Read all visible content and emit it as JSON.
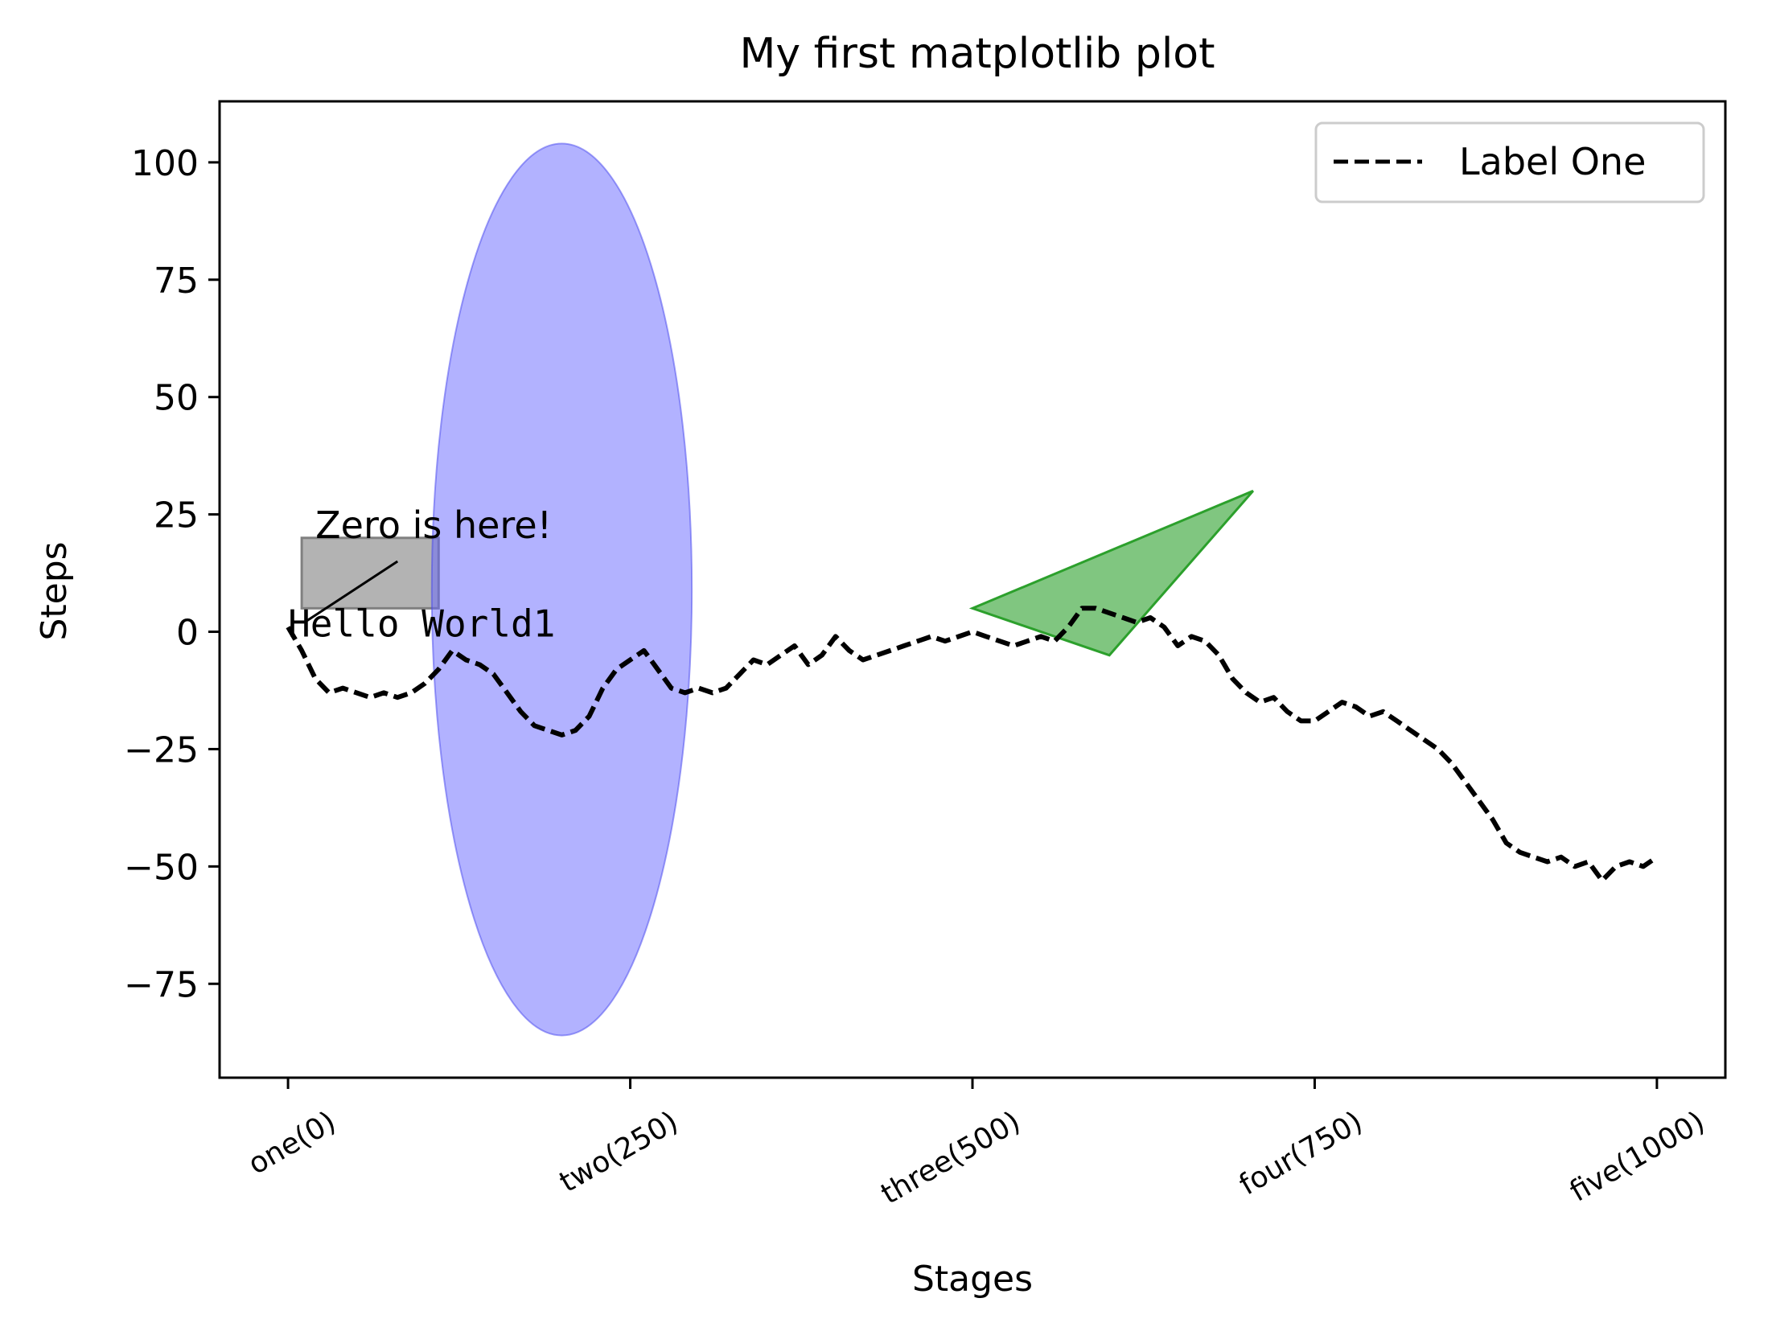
{
  "chart_data": {
    "type": "line",
    "title": "My first matplotlib plot",
    "xlabel": "Stages",
    "ylabel": "Steps",
    "xlim": [
      -50,
      1050
    ],
    "ylim": [
      -95,
      113
    ],
    "xticks": [
      {
        "value": 0,
        "label": "one(0)"
      },
      {
        "value": 250,
        "label": "two(250)"
      },
      {
        "value": 500,
        "label": "three(500)"
      },
      {
        "value": 750,
        "label": "four(750)"
      },
      {
        "value": 1000,
        "label": "five(1000)"
      }
    ],
    "yticks": [
      {
        "value": 100,
        "label": "100"
      },
      {
        "value": 75,
        "label": "75"
      },
      {
        "value": 50,
        "label": "50"
      },
      {
        "value": 25,
        "label": "25"
      },
      {
        "value": 0,
        "label": "0"
      },
      {
        "value": -25,
        "label": "−25"
      },
      {
        "value": -50,
        "label": "−50"
      },
      {
        "value": -75,
        "label": "−75"
      }
    ],
    "legend": {
      "position": "top-right",
      "entries": [
        {
          "label": "Label One",
          "style": "dashed",
          "color": "#000000"
        }
      ]
    },
    "series": [
      {
        "name": "Label One",
        "color": "#000000",
        "style": "dashed",
        "x": [
          0,
          10,
          20,
          30,
          40,
          50,
          60,
          70,
          80,
          90,
          100,
          110,
          120,
          130,
          140,
          150,
          160,
          170,
          180,
          190,
          200,
          210,
          220,
          230,
          240,
          250,
          260,
          270,
          280,
          290,
          300,
          310,
          320,
          330,
          340,
          350,
          360,
          370,
          380,
          390,
          400,
          410,
          420,
          430,
          440,
          450,
          460,
          470,
          480,
          490,
          500,
          510,
          520,
          530,
          540,
          550,
          560,
          570,
          580,
          590,
          600,
          610,
          620,
          630,
          640,
          650,
          660,
          670,
          680,
          690,
          700,
          710,
          720,
          730,
          740,
          750,
          760,
          770,
          780,
          790,
          800,
          810,
          820,
          830,
          840,
          850,
          860,
          870,
          880,
          890,
          900,
          910,
          920,
          930,
          940,
          950,
          960,
          970,
          980,
          990,
          1000
        ],
        "y": [
          1,
          -4,
          -10,
          -13,
          -12,
          -13,
          -14,
          -13,
          -14,
          -13,
          -11,
          -8,
          -4,
          -6,
          -7,
          -9,
          -13,
          -17,
          -20,
          -21,
          -22,
          -21,
          -18,
          -12,
          -8,
          -6,
          -4,
          -8,
          -12,
          -13,
          -12,
          -13,
          -12,
          -9,
          -6,
          -7,
          -5,
          -3,
          -7,
          -5,
          -1,
          -4,
          -6,
          -5,
          -4,
          -3,
          -2,
          -1,
          -2,
          -1,
          0,
          -1,
          -2,
          -3,
          -2,
          -1,
          -2,
          1,
          5,
          5,
          4,
          3,
          2,
          3,
          1,
          -3,
          -1,
          -2,
          -5,
          -10,
          -13,
          -15,
          -14,
          -17,
          -19,
          -19,
          -17,
          -15,
          -16,
          -18,
          -17,
          -19,
          -21,
          -23,
          -25,
          -28,
          -32,
          -36,
          -40,
          -45,
          -47,
          -48,
          -49,
          -48,
          -50,
          -49,
          -53,
          -50,
          -49,
          -50,
          -48
        ]
      }
    ],
    "annotations": [
      {
        "text": "Zero is here!",
        "x": 20,
        "y": 20,
        "arrow_to": [
          12,
          2
        ],
        "arrow_from": [
          80,
          15
        ]
      },
      {
        "text": "Hello World1",
        "x": 0,
        "y": -1,
        "font": "monospace"
      }
    ],
    "patches": [
      {
        "type": "rectangle",
        "x": 10,
        "y": 5,
        "width": 100,
        "height": 15,
        "color": "#808080",
        "alpha": 0.6
      },
      {
        "type": "ellipse",
        "cx": 200,
        "cy": 9,
        "width": 190,
        "height": 190,
        "color": "#6666ff",
        "alpha": 0.5
      },
      {
        "type": "polygon",
        "points": [
          [
            500,
            5
          ],
          [
            600,
            -5
          ],
          [
            705,
            30
          ]
        ],
        "color": "#2ca02c",
        "alpha": 0.6
      }
    ]
  }
}
